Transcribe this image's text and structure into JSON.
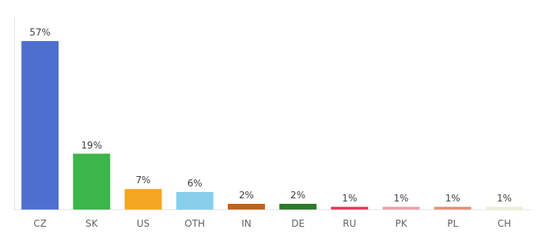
{
  "chart_data": {
    "type": "bar",
    "categories": [
      "CZ",
      "SK",
      "US",
      "OTH",
      "IN",
      "DE",
      "RU",
      "PK",
      "PL",
      "CH"
    ],
    "values": [
      57,
      19,
      7,
      6,
      2,
      2,
      1,
      1,
      1,
      1
    ],
    "value_labels": [
      "57%",
      "19%",
      "7%",
      "6%",
      "2%",
      "2%",
      "1%",
      "1%",
      "1%",
      "1%"
    ],
    "colors": [
      "#4f6fd0",
      "#3cb54a",
      "#f5a623",
      "#87ceeb",
      "#c0621a",
      "#2d7a2d",
      "#e8395a",
      "#f0a0b0",
      "#e8907a",
      "#f0eed8"
    ],
    "ylim": [
      0,
      65
    ],
    "grid": false,
    "data_labels": true,
    "tick_labels": "x"
  }
}
